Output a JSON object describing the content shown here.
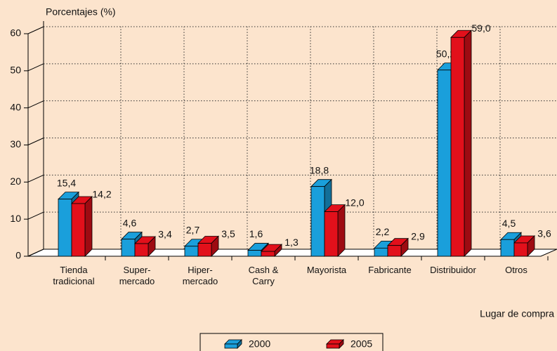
{
  "chart_data": {
    "type": "bar3d",
    "y_label": "Porcentajes (%)",
    "x_label": "Lugar de compra",
    "categories": [
      "Tienda\ntradicional",
      "Super-\nmercado",
      "Hiper-\nmercado",
      "Cash &\nCarry",
      "Mayorista",
      "Fabricante",
      "Distribuidor",
      "Otros"
    ],
    "series": [
      {
        "name": "2000",
        "color": "#1a9fdb",
        "values": [
          15.4,
          4.6,
          2.7,
          1.6,
          18.8,
          2.2,
          50.2,
          4.5
        ],
        "value_labels": [
          "15,4",
          "4,6",
          "2,7",
          "1,6",
          "18,8",
          "2,2",
          "50,2",
          "4,5"
        ]
      },
      {
        "name": "2005",
        "color": "#e2101b",
        "values": [
          14.2,
          3.4,
          3.5,
          1.3,
          12.0,
          2.9,
          59.0,
          3.6
        ],
        "value_labels": [
          "14,2",
          "3,4",
          "3,5",
          "1,3",
          "12,0",
          "2,9",
          "59,0",
          "3,6"
        ]
      }
    ],
    "ylim": [
      0,
      60
    ],
    "yticks": [
      0,
      10,
      20,
      30,
      40,
      50,
      60
    ],
    "grid": true,
    "legend": "bottom"
  }
}
